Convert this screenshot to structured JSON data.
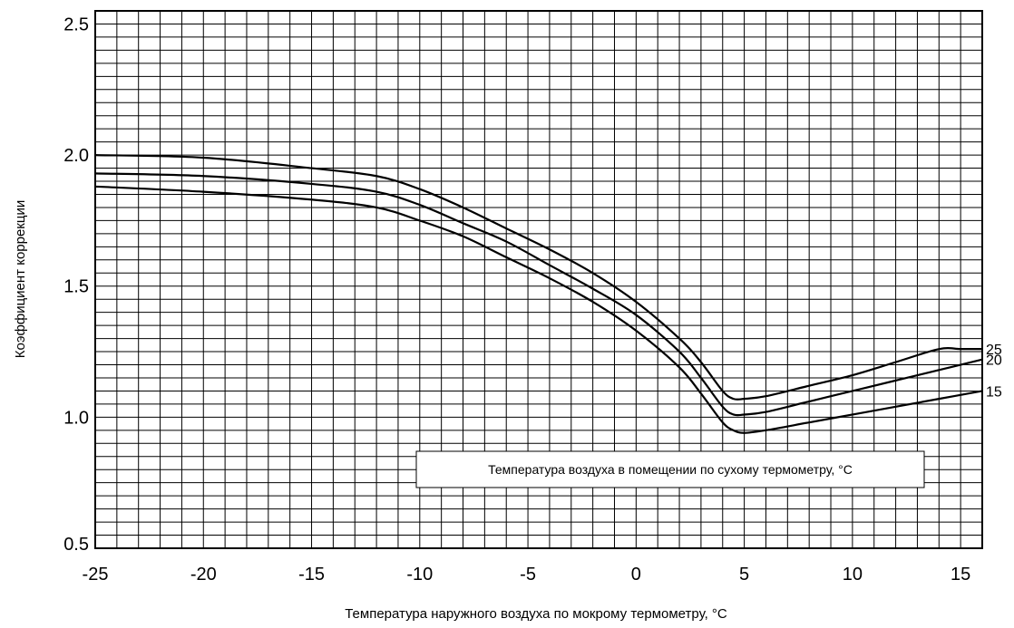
{
  "chart_data": {
    "type": "line",
    "title": "",
    "xlabel": "Температура наружного воздуха по мокрому термометру, °C",
    "ylabel": "Коэффициент коррекции",
    "xlim": [
      -25,
      16
    ],
    "ylim": [
      0.5,
      2.55
    ],
    "x_ticks": [
      "-25",
      "-20",
      "-15",
      "-10",
      "-5",
      "0",
      "5",
      "10",
      "15"
    ],
    "y_ticks": [
      "0.5",
      "1.0",
      "1.5",
      "2.0",
      "2.5"
    ],
    "grid": true,
    "legend_title": "Температура воздуха в помещении по сухому термометру, °C",
    "series": [
      {
        "name": "25",
        "x": [
          -25,
          -20,
          -15,
          -12,
          -10,
          -8,
          -6,
          -4,
          -2,
          0,
          2,
          3,
          4,
          4.5,
          5,
          6,
          8,
          10,
          12,
          14,
          15,
          16
        ],
        "y": [
          2.0,
          1.99,
          1.95,
          1.92,
          1.87,
          1.8,
          1.72,
          1.64,
          1.55,
          1.44,
          1.3,
          1.21,
          1.1,
          1.07,
          1.07,
          1.08,
          1.12,
          1.16,
          1.21,
          1.26,
          1.26,
          1.26
        ]
      },
      {
        "name": "20",
        "x": [
          -25,
          -20,
          -15,
          -12,
          -10,
          -8,
          -6,
          -4,
          -2,
          0,
          2,
          3,
          4,
          4.5,
          5,
          6,
          8,
          10,
          12,
          14,
          16
        ],
        "y": [
          1.93,
          1.92,
          1.89,
          1.86,
          1.81,
          1.74,
          1.67,
          1.58,
          1.49,
          1.39,
          1.25,
          1.15,
          1.04,
          1.01,
          1.01,
          1.02,
          1.06,
          1.1,
          1.14,
          1.18,
          1.22
        ]
      },
      {
        "name": "15",
        "x": [
          -25,
          -20,
          -15,
          -12,
          -10,
          -8,
          -6,
          -4,
          -2,
          0,
          2,
          3,
          4,
          4.5,
          5,
          6,
          8,
          10,
          12,
          14,
          16
        ],
        "y": [
          1.88,
          1.86,
          1.83,
          1.8,
          1.75,
          1.69,
          1.61,
          1.53,
          1.44,
          1.33,
          1.19,
          1.09,
          0.98,
          0.95,
          0.94,
          0.95,
          0.98,
          1.01,
          1.04,
          1.07,
          1.1
        ]
      }
    ]
  }
}
